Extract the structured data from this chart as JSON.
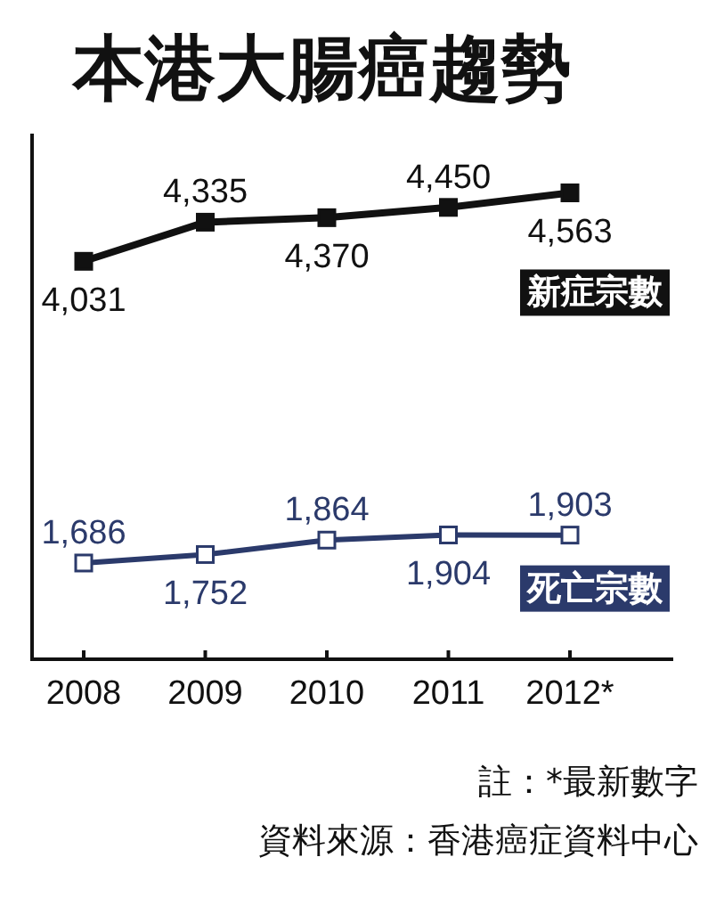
{
  "chart_data": {
    "type": "line",
    "title": "本港大腸癌趨勢",
    "categories": [
      "2008",
      "2009",
      "2010",
      "2011",
      "2012*"
    ],
    "series": [
      {
        "name": "新症宗數",
        "color": "#111111",
        "values": [
          4031,
          4335,
          4370,
          4450,
          4563
        ],
        "value_labels": [
          "4,031",
          "4,335",
          "4,370",
          "4,450",
          "4,563"
        ]
      },
      {
        "name": "死亡宗數",
        "color": "#2b3a6b",
        "values": [
          1686,
          1752,
          1864,
          1904,
          1903
        ],
        "value_labels": [
          "1,686",
          "1,752",
          "1,864",
          "1,904",
          "1,903"
        ]
      }
    ],
    "marker": "square",
    "line_style": "solid",
    "grid": false,
    "annotations": [
      "註：*最新數字",
      "資料來源：香港癌症資料中心"
    ]
  }
}
